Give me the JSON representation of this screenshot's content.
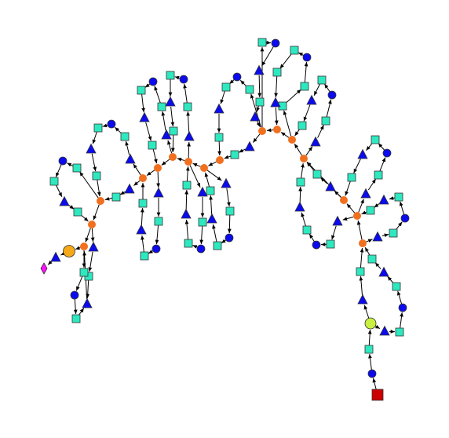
{
  "diagram": {
    "type": "directed-graph",
    "description": "",
    "colors": {
      "square": "#2ee8c0",
      "circle": "#0b0bee",
      "triangle": "#0b0bee",
      "junction": "#f07020",
      "start": "#cc0000",
      "end": "#ff10ff",
      "hub_large": "#f5a818",
      "hub_lime": "#c8f040",
      "edge": "#000000",
      "outline": "#333333"
    }
  }
}
